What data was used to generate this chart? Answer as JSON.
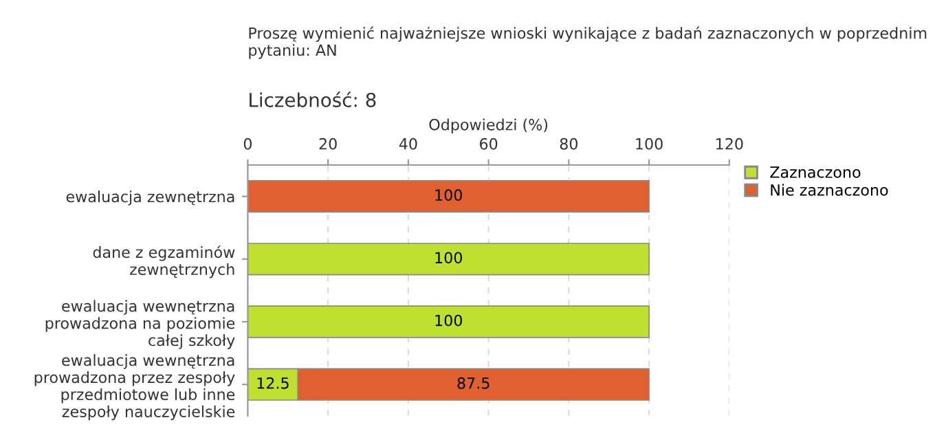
{
  "chart_data": {
    "type": "bar",
    "orientation": "horizontal",
    "stacked": true,
    "title": "Proszę wymienić najważniejsze wnioski wynikające z badań zaznaczonych w poprzednim pytaniu: AN",
    "subtitle": "Liczebność: 8",
    "xlabel": "Odpowiedzi (%)",
    "categories": [
      "ewaluacja zewnętrzna",
      "dane z egzaminów zewnętrznych",
      "ewaluacja wewnętrzna prowadzona na poziomie całej szkoły",
      "ewaluacja wewnętrzna prowadzona przez zespoły przedmiotowe lub inne zespoły nauczycielskie"
    ],
    "series": [
      {
        "name": "Zaznaczono",
        "color": "#c0e030",
        "values": [
          0,
          100,
          100,
          12.5
        ],
        "value_labels": [
          null,
          "100",
          "100",
          "12.5"
        ]
      },
      {
        "name": "Nie zaznaczono",
        "color": "#e06030",
        "values": [
          100,
          0,
          0,
          87.5
        ],
        "value_labels": [
          "100",
          null,
          null,
          "87.5"
        ]
      }
    ],
    "xlim": [
      0,
      120
    ],
    "xticks": [
      0,
      20,
      40,
      60,
      80,
      100,
      120
    ],
    "grid": "x",
    "legend": "top right"
  }
}
